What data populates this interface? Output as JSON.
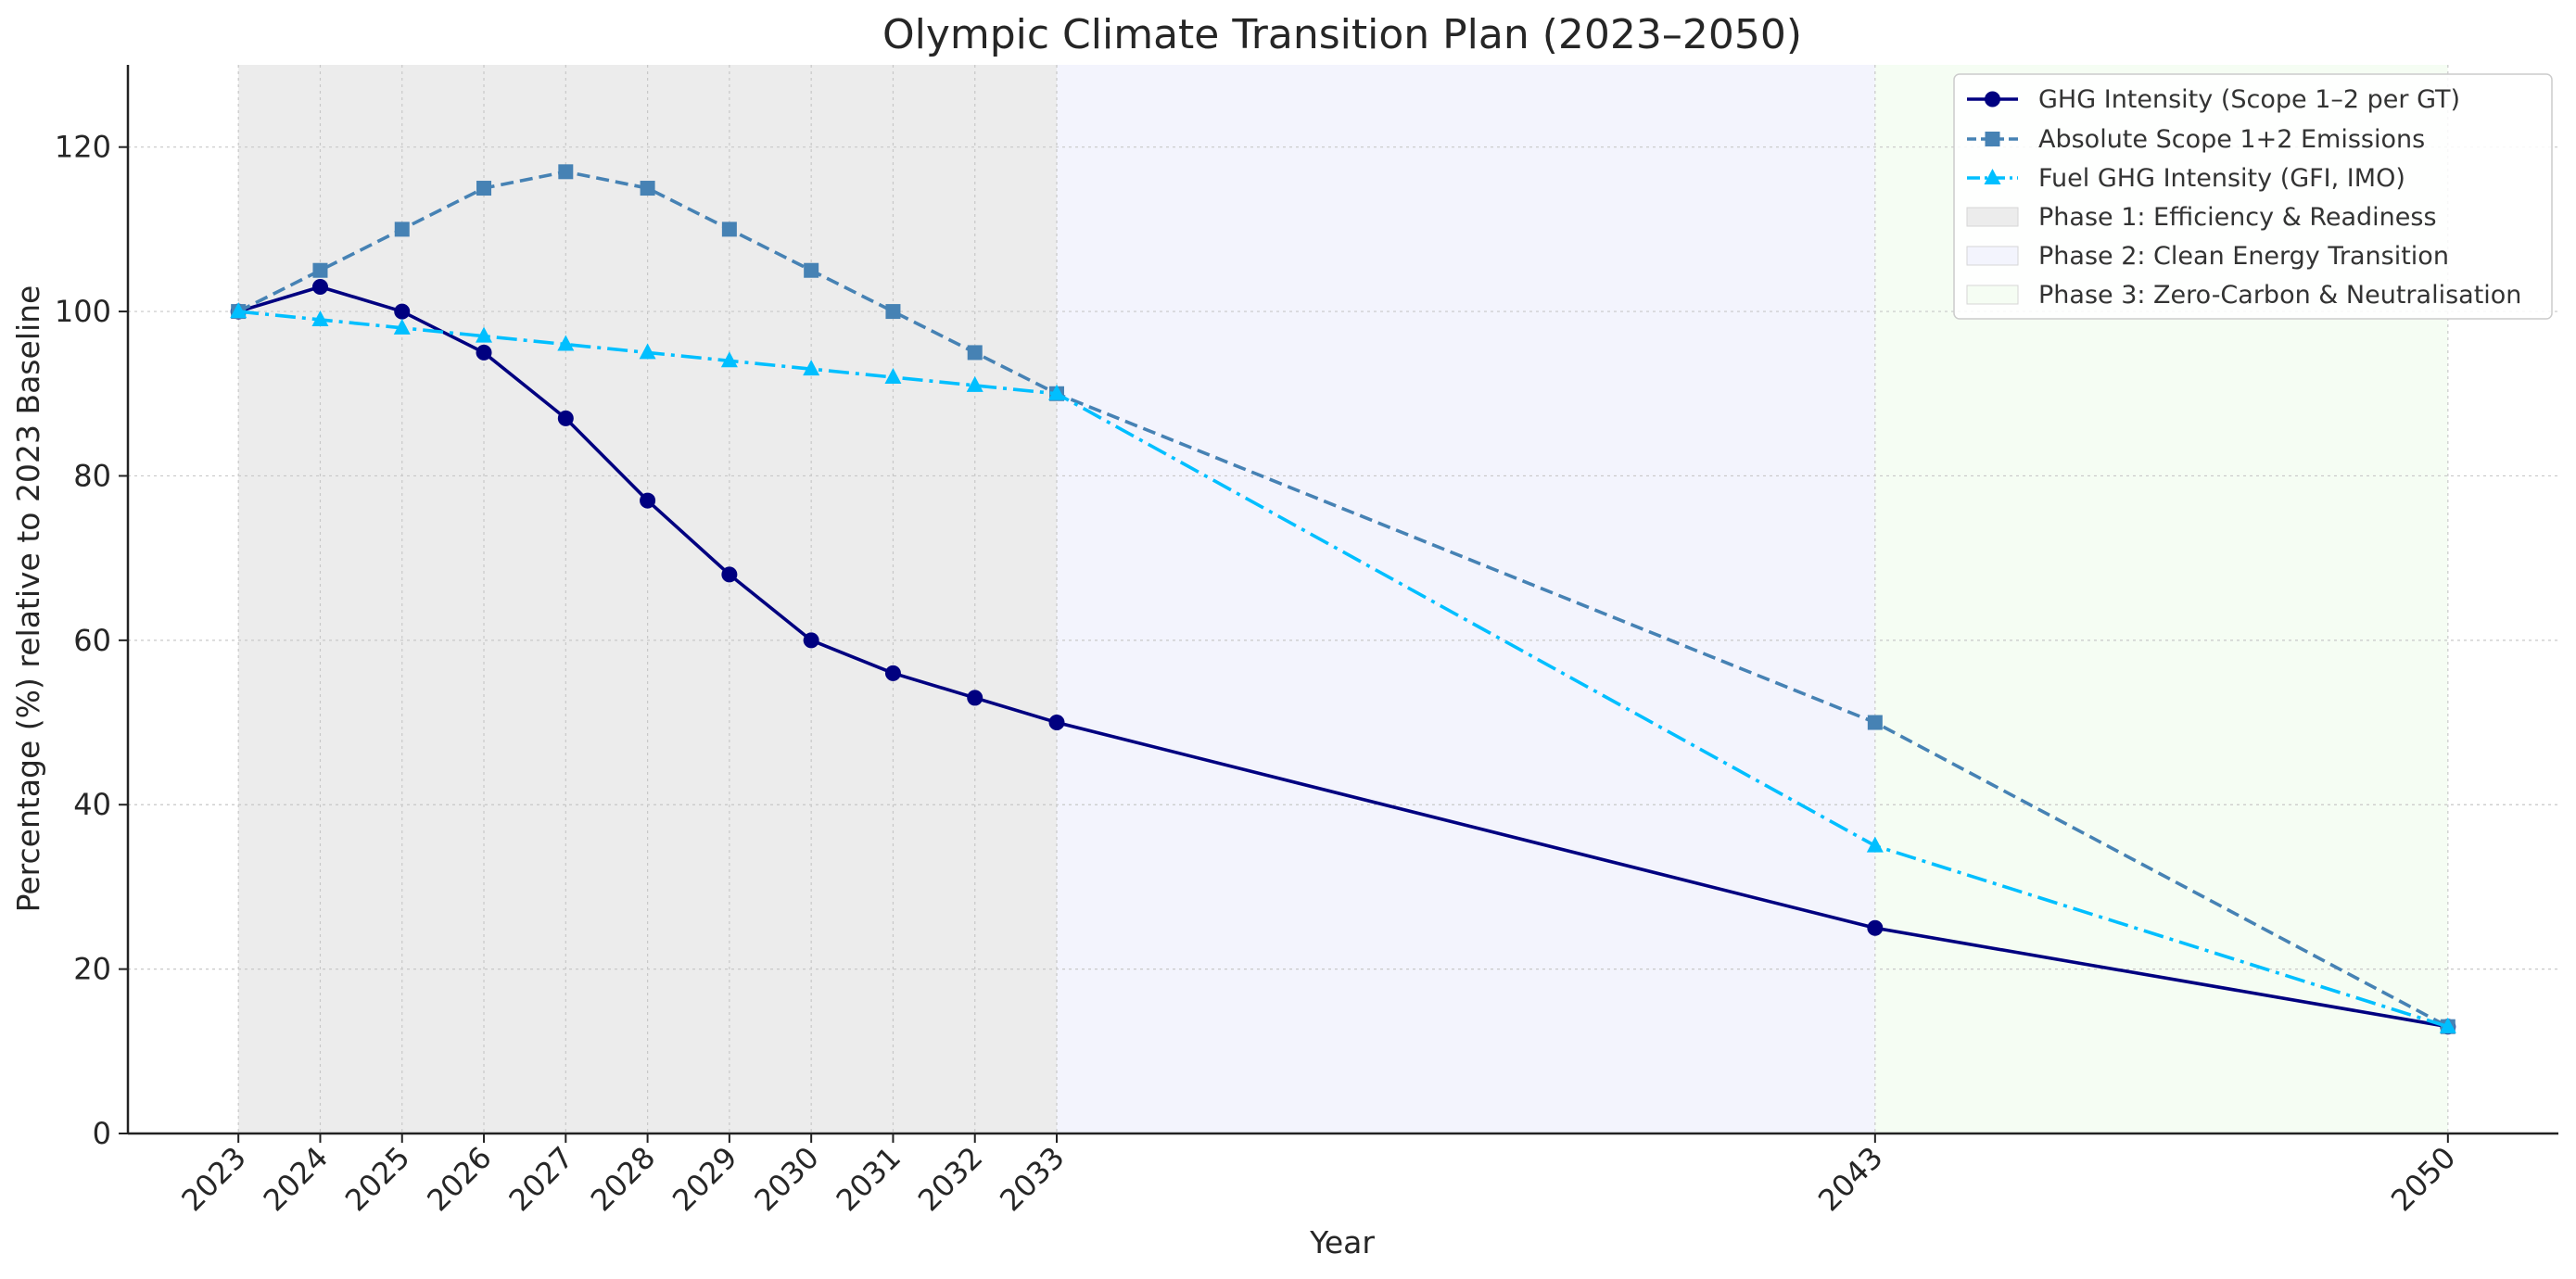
{
  "chart_data": {
    "type": "line",
    "title": "Olympic Climate Transition Plan (2023–2050)",
    "xlabel": "Year",
    "ylabel": "Percentage (%) relative to 2023 Baseline",
    "ylim": [
      0,
      130
    ],
    "xlim": [
      2021.65,
      2051.35
    ],
    "x": [
      2023,
      2024,
      2025,
      2026,
      2027,
      2028,
      2029,
      2030,
      2031,
      2032,
      2033,
      2043,
      2050
    ],
    "x_tick_labels": [
      "2023",
      "2024",
      "2025",
      "2026",
      "2027",
      "2028",
      "2029",
      "2030",
      "2031",
      "2032",
      "2033",
      "2043",
      "2050"
    ],
    "y_ticks": [
      0,
      20,
      40,
      60,
      80,
      100,
      120
    ],
    "y_tick_labels": [
      "0",
      "20",
      "40",
      "60",
      "80",
      "100",
      "120"
    ],
    "grid": true,
    "legend_position": "top-right",
    "series": [
      {
        "name": "GHG Intensity (Scope 1–2 per GT)",
        "values": [
          100,
          103,
          100,
          95,
          87,
          77,
          68,
          60,
          56,
          53,
          50,
          25,
          13
        ],
        "color": "#000080",
        "line_style": "solid",
        "marker": "circle"
      },
      {
        "name": "Absolute Scope 1+2 Emissions",
        "values": [
          100,
          105,
          110,
          115,
          117,
          115,
          110,
          105,
          100,
          95,
          90,
          50,
          13
        ],
        "color": "#4682b4",
        "line_style": "dashed",
        "marker": "square"
      },
      {
        "name": "Fuel GHG Intensity (GFI, IMO)",
        "values": [
          100,
          99,
          98,
          97,
          96,
          95,
          94,
          93,
          92,
          91,
          90,
          35,
          13
        ],
        "color": "#00bfff",
        "line_style": "dashdot",
        "marker": "triangle"
      }
    ],
    "phases": [
      {
        "name": "Phase 1: Efficiency & Readiness",
        "start": 2023,
        "end": 2033,
        "color": "#ececec"
      },
      {
        "name": "Phase 2: Clean Energy Transition",
        "start": 2033,
        "end": 2043,
        "color": "#f3f4fd"
      },
      {
        "name": "Phase 3: Zero-Carbon & Neutralisation",
        "start": 2043,
        "end": 2050,
        "color": "#f5fdf3"
      }
    ]
  }
}
